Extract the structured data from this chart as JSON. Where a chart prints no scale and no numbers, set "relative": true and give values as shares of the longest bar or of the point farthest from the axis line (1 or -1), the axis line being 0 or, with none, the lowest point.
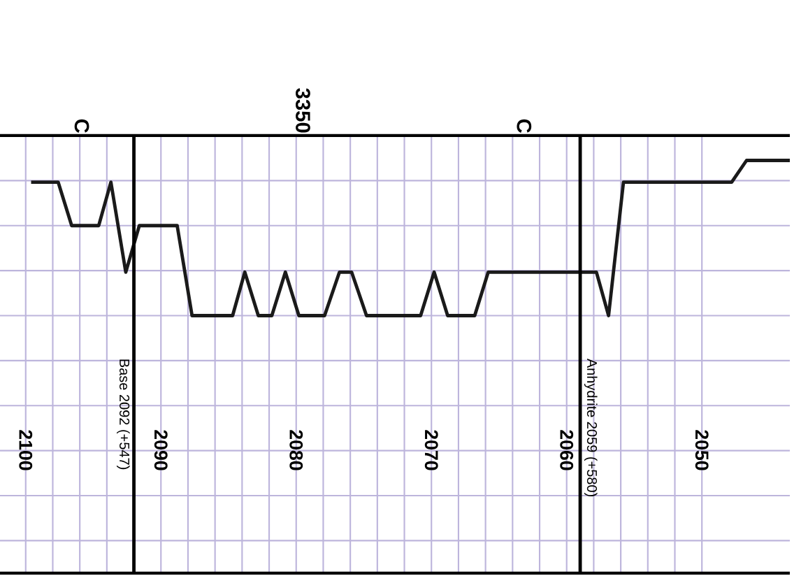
{
  "chart_data": {
    "type": "line",
    "relative": true,
    "grid": true,
    "xlim": [
      2101.9,
      2043.5
    ],
    "xticks": [
      2100,
      2090,
      2080,
      2070,
      2060,
      2050
    ],
    "series": [
      {
        "color": "#1a1a1a",
        "x": [
          2099.6,
          2097.6,
          2096.6,
          2094.6,
          2093.7,
          2092.6,
          2091.6,
          2088.8,
          2087.7,
          2084.7,
          2083.8,
          2082.8,
          2081.8,
          2080.8,
          2079.8,
          2077.9,
          2076.8,
          2075.9,
          2074.8,
          2070.8,
          2069.8,
          2068.8,
          2066.8,
          2065.8,
          2057.8,
          2056.9,
          2055.8,
          2047.8,
          2046.7,
          2043.5
        ],
        "values": [
          0.86,
          0.86,
          0.58,
          0.58,
          0.86,
          0.28,
          0.58,
          0.58,
          0,
          0,
          0.28,
          0,
          0,
          0.28,
          0,
          0,
          0.28,
          0.28,
          0,
          0,
          0.28,
          0,
          0,
          0.28,
          0.28,
          0,
          0.86,
          0.86,
          1,
          1
        ]
      }
    ],
    "ref_lines": [
      {
        "axis": "x",
        "value": 2092,
        "label": "Base 2092 (+547)"
      },
      {
        "axis": "x",
        "value": 2059,
        "label": "Anhydrite 2059 (+580)"
      }
    ],
    "annotations": [
      "C",
      "3350",
      "C"
    ]
  }
}
